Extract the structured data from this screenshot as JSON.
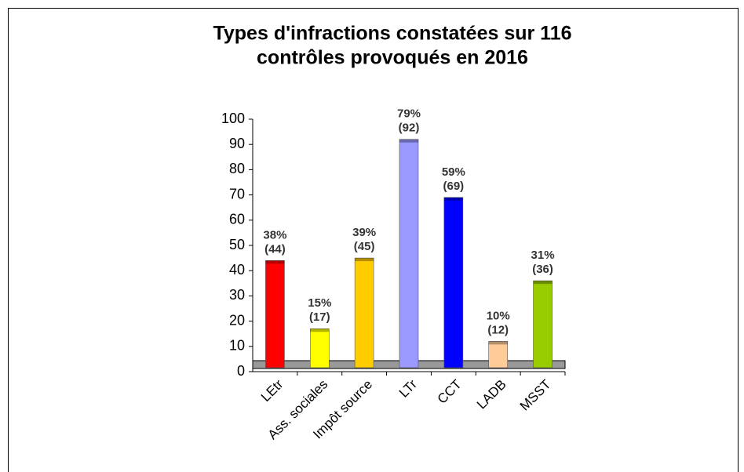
{
  "chart_data": {
    "type": "bar",
    "title": "Types d'infractions constatées sur 116",
    "subtitle": "contrôles provoqués en 2016",
    "categories": [
      "LEtr",
      "Ass. sociales",
      "Impôt source",
      "LTr",
      "CCT",
      "LADB",
      "MSST"
    ],
    "values": [
      44,
      17,
      45,
      92,
      69,
      12,
      36
    ],
    "value_labels": [
      "(44)",
      "(17)",
      "(45)",
      "(92)",
      "(69)",
      "(12)",
      "(36)"
    ],
    "percentages": [
      38,
      15,
      39,
      79,
      59,
      10,
      31
    ],
    "percentage_labels": [
      "38%",
      "15%",
      "39%",
      "79%",
      "59%",
      "10%",
      "31%"
    ],
    "colors": [
      "#ff0000",
      "#ffff00",
      "#ffcc00",
      "#9999ff",
      "#0000ff",
      "#ffcc99",
      "#99cc00"
    ],
    "ylim": [
      0,
      100
    ],
    "yticks": [
      0,
      10,
      20,
      30,
      40,
      50,
      60,
      70,
      80,
      90,
      100
    ]
  }
}
